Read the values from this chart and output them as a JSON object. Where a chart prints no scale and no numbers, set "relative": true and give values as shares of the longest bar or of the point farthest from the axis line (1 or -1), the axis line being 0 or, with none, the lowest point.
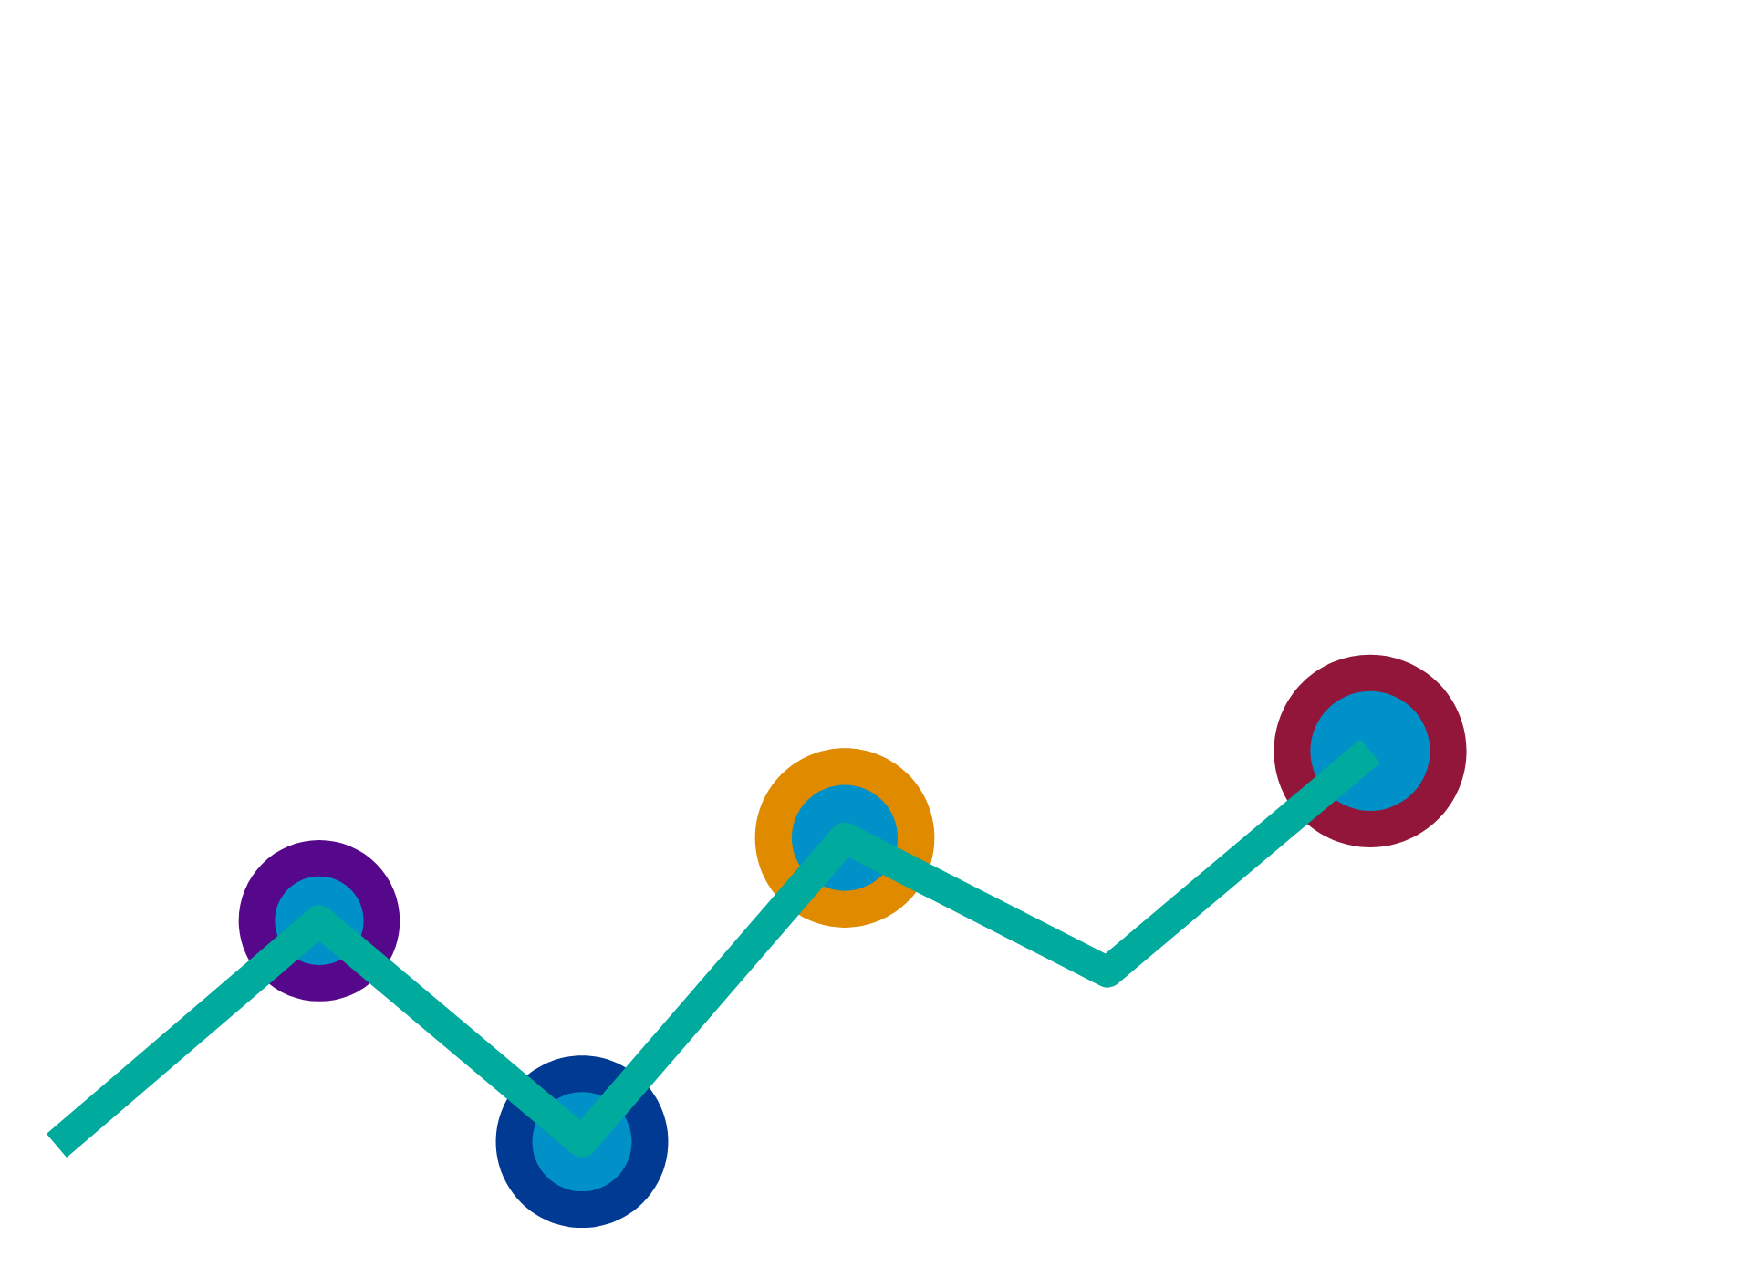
{
  "chart_data": {
    "type": "line",
    "relative": true,
    "categories": [
      null,
      null,
      null,
      null,
      null,
      null
    ],
    "series": [
      {
        "color": "#00aa9d",
        "values": [
          0,
          0.57,
          0.01,
          0.78,
          0.44,
          1
        ]
      }
    ]
  }
}
